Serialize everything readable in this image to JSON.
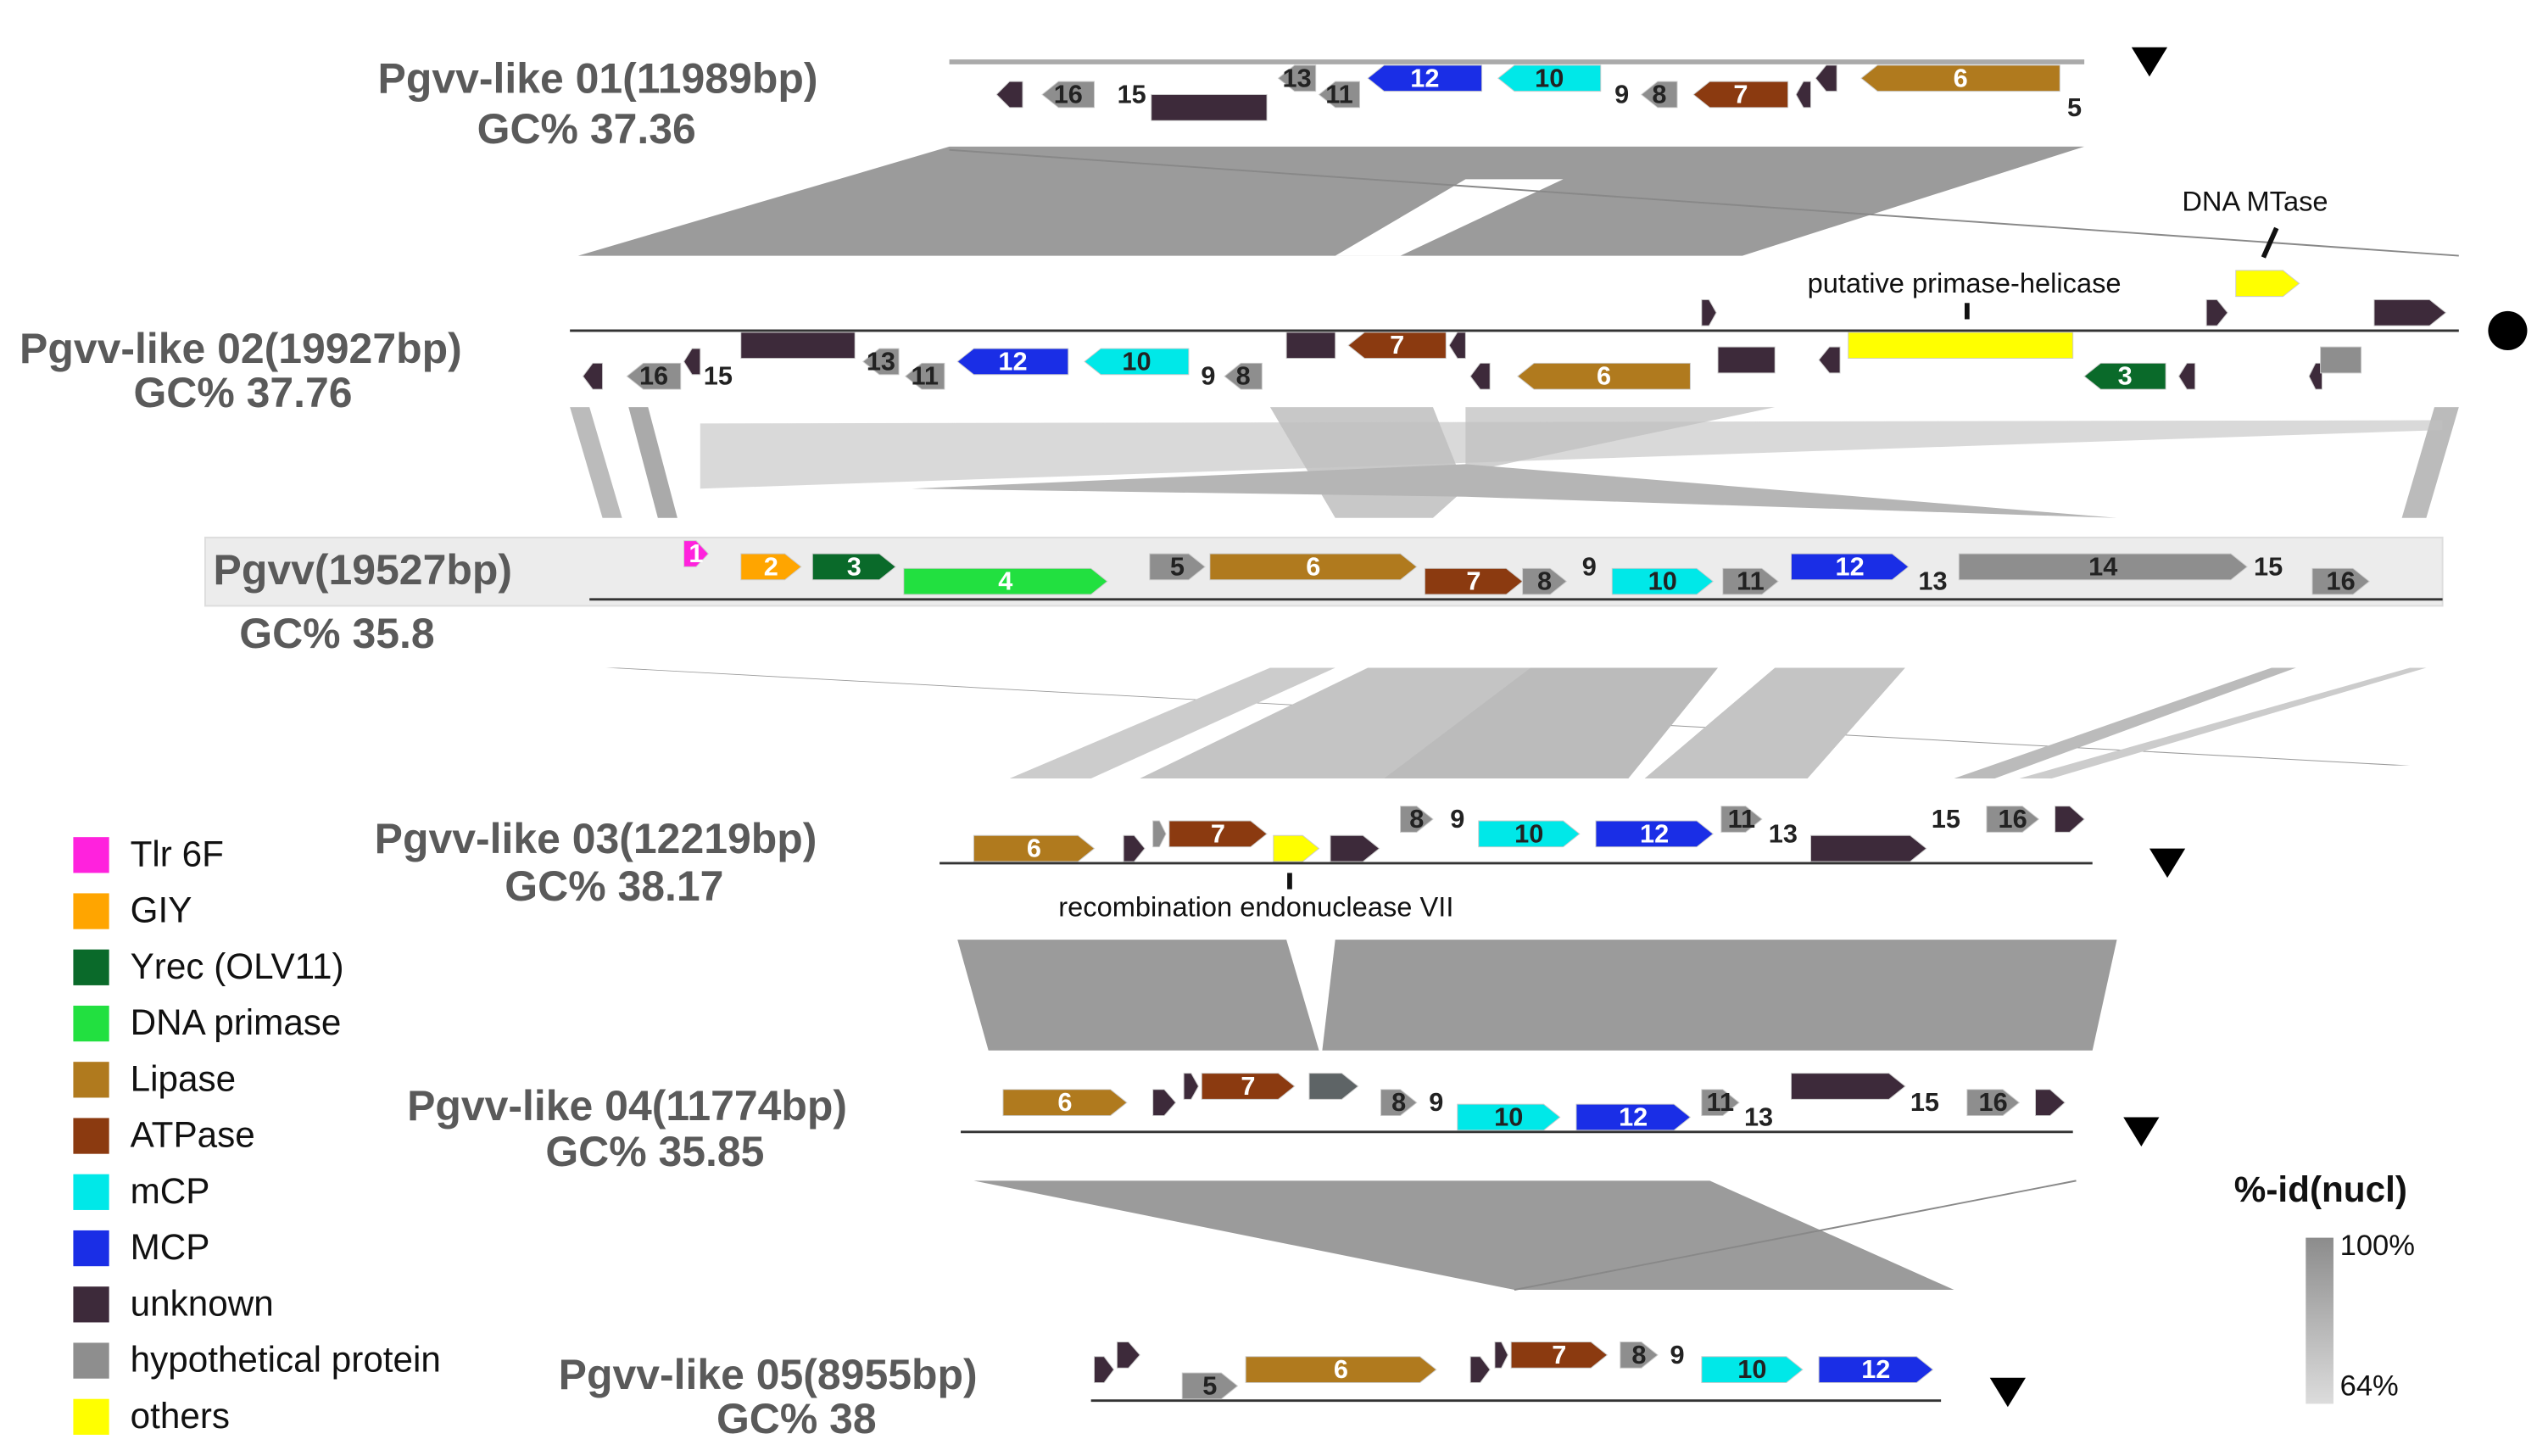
{
  "genomes": [
    {
      "name": "Pgvv-like 01(11989bp)",
      "gc": "GC%  37.36",
      "genes": [
        "16",
        "15",
        "13",
        "11",
        "12",
        "10",
        "9",
        "8",
        "7",
        "6",
        "5"
      ]
    },
    {
      "name": "Pgvv-like 02(19927bp)",
      "gc": "GC%  37.76",
      "genes": [
        "16",
        "15",
        "13",
        "11",
        "12",
        "10",
        "9",
        "8",
        "7",
        "6",
        "3"
      ]
    },
    {
      "name": "Pgvv(19527bp)",
      "gc": "GC%  35.8",
      "genes": [
        "1",
        "2",
        "3",
        "4",
        "5",
        "6",
        "7",
        "8",
        "9",
        "10",
        "11",
        "12",
        "13",
        "14",
        "15",
        "16"
      ]
    },
    {
      "name": "Pgvv-like 03(12219bp)",
      "gc": "GC%  38.17",
      "genes": [
        "6",
        "7",
        "8",
        "9",
        "10",
        "12",
        "11",
        "13",
        "15",
        "16"
      ]
    },
    {
      "name": "Pgvv-like 04(11774bp)",
      "gc": "GC%  35.85",
      "genes": [
        "6",
        "7",
        "8",
        "9",
        "10",
        "12",
        "11",
        "13",
        "15",
        "16"
      ]
    },
    {
      "name": "Pgvv-like 05(8955bp)",
      "gc": "GC%  38",
      "genes": [
        "5",
        "6",
        "7",
        "8",
        "9",
        "10",
        "12"
      ]
    }
  ],
  "annotations": [
    "DNA MTase",
    "putative primase-helicase",
    "recombination endonuclease VII"
  ],
  "legend": [
    "Tlr 6F",
    "GIY",
    "Yrec (OLV11)",
    "DNA primase",
    "Lipase",
    "ATPase",
    "mCP",
    "MCP",
    "unknown",
    "hypothetical protein",
    "others"
  ],
  "scale": {
    "title": "%-id(nucl)",
    "max": "100%",
    "min": "64%"
  }
}
